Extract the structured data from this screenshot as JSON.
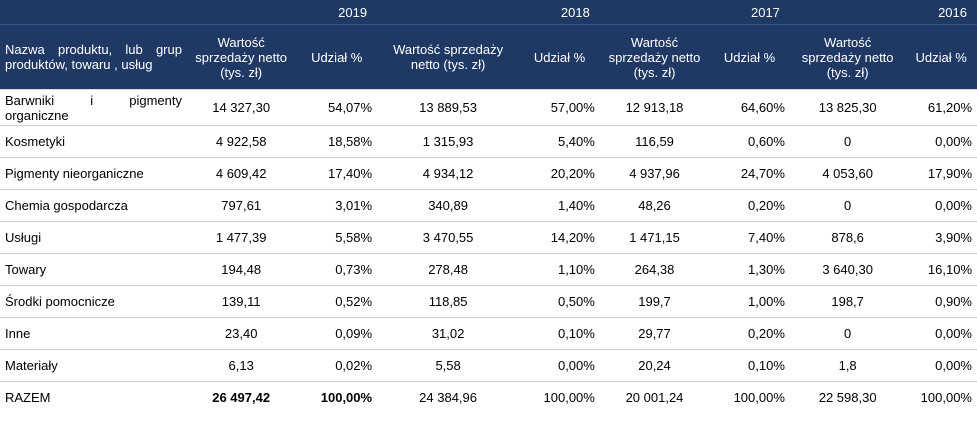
{
  "table": {
    "years": [
      "2019",
      "2018",
      "2017",
      "2016"
    ],
    "name_header": "Nazwa produktu, lub grup produktów, towaru , usług",
    "value_header": "Wartość sprzedaży netto (tys. zł)",
    "share_header": "Udział %",
    "rows": [
      {
        "name": "Barwniki i pigmenty organiczne",
        "cells": [
          "14 327,30",
          "54,07%",
          "13 889,53",
          "57,00%",
          "12 913,18",
          "64,60%",
          "13 825,30",
          "61,20%"
        ]
      },
      {
        "name": "Kosmetyki",
        "cells": [
          "4 922,58",
          "18,58%",
          "1 315,93",
          "5,40%",
          "116,59",
          "0,60%",
          "0",
          "0,00%"
        ]
      },
      {
        "name": "Pigmenty nieorganiczne",
        "cells": [
          "4 609,42",
          "17,40%",
          "4 934,12",
          "20,20%",
          "4 937,96",
          "24,70%",
          "4 053,60",
          "17,90%"
        ]
      },
      {
        "name": "Chemia gospodarcza",
        "cells": [
          "797,61",
          "3,01%",
          "340,89",
          "1,40%",
          "48,26",
          "0,20%",
          "0",
          "0,00%"
        ]
      },
      {
        "name": "Usługi",
        "cells": [
          "1 477,39",
          "5,58%",
          "3 470,55",
          "14,20%",
          "1 471,15",
          "7,40%",
          "878,6",
          "3,90%"
        ]
      },
      {
        "name": "Towary",
        "cells": [
          "194,48",
          "0,73%",
          "278,48",
          "1,10%",
          "264,38",
          "1,30%",
          "3 640,30",
          "16,10%"
        ]
      },
      {
        "name": "Środki pomocnicze",
        "cells": [
          "139,11",
          "0,52%",
          "118,85",
          "0,50%",
          "199,7",
          "1,00%",
          "198,7",
          "0,90%"
        ]
      },
      {
        "name": "Inne",
        "cells": [
          "23,40",
          "0,09%",
          "31,02",
          "0,10%",
          "29,77",
          "0,20%",
          "0",
          "0,00%"
        ]
      },
      {
        "name": "Materiały",
        "cells": [
          "6,13",
          "0,02%",
          "5,58",
          "0,00%",
          "20,24",
          "0,10%",
          "1,8",
          "0,00%"
        ]
      }
    ],
    "total": {
      "name": "RAZEM",
      "cells": [
        "26 497,42",
        "100,00%",
        "24 384,96",
        "100,00%",
        "20 001,24",
        "100,00%",
        "22 598,30",
        "100,00%"
      ]
    }
  },
  "colors": {
    "header_bg": "#1f3864",
    "header_text": "#ffffff",
    "row_rule": "#d0d0d0"
  }
}
